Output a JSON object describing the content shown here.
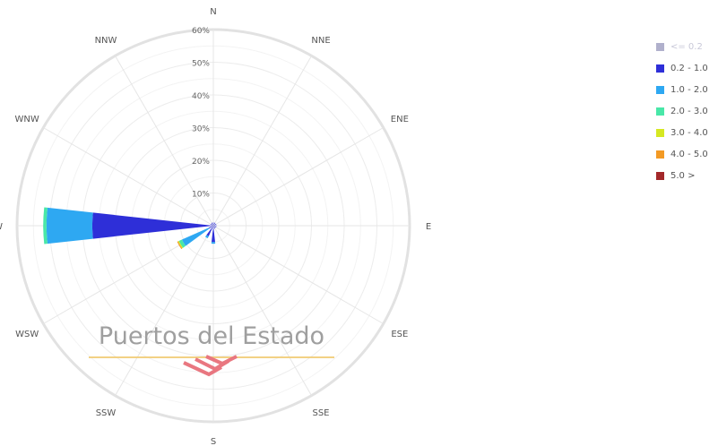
{
  "chart_data": {
    "type": "polar-stacked-bar",
    "title": "",
    "directions": [
      "N",
      "NNE",
      "ENE",
      "E",
      "ESE",
      "SSE",
      "S",
      "SSW",
      "WSW",
      "W",
      "WNW",
      "NNW"
    ],
    "radial_ticks": [
      "10%",
      "20%",
      "30%",
      "40%",
      "50%",
      "60%"
    ],
    "radial_max": 60,
    "series": [
      {
        "name": "<= 0.2",
        "color": "#b0b0cc",
        "values": [
          0,
          0,
          0,
          0,
          0,
          0,
          0,
          0,
          0,
          0,
          0,
          0
        ]
      },
      {
        "name": "0.2 - 1.0",
        "color": "#2e2fd8",
        "values": [
          1,
          1,
          1,
          1,
          1,
          1,
          5,
          3.5,
          1.5,
          37,
          1,
          1
        ]
      },
      {
        "name": "1.0 - 2.0",
        "color": "#2ea8f2",
        "values": [
          0,
          0,
          0,
          0,
          0,
          0,
          0.5,
          0.7,
          9,
          14,
          0,
          0
        ]
      },
      {
        "name": "2.0 - 3.0",
        "color": "#49e7a8",
        "values": [
          0,
          0,
          0,
          0,
          0,
          0,
          0,
          0,
          1,
          1,
          0,
          0
        ]
      },
      {
        "name": "3.0 - 4.0",
        "color": "#d6e822",
        "values": [
          0,
          0,
          0,
          0,
          0,
          0,
          0,
          0,
          0.3,
          0,
          0,
          0
        ]
      },
      {
        "name": "4.0 - 5.0",
        "color": "#f39a24",
        "values": [
          0,
          0,
          0,
          0,
          0,
          0,
          0,
          0,
          0.3,
          0,
          0,
          0
        ]
      },
      {
        "name": "5.0 >",
        "color": "#a3282a",
        "values": [
          0,
          0,
          0,
          0,
          0,
          0,
          0,
          0,
          0,
          0,
          0,
          0
        ]
      }
    ],
    "legend_position": "top-right",
    "grid": true
  },
  "watermark": {
    "text": "Puertos del Estado",
    "text_color": "#9a9a9a",
    "line_color": "#f2cf7e",
    "logo_color": "#e8707a"
  }
}
